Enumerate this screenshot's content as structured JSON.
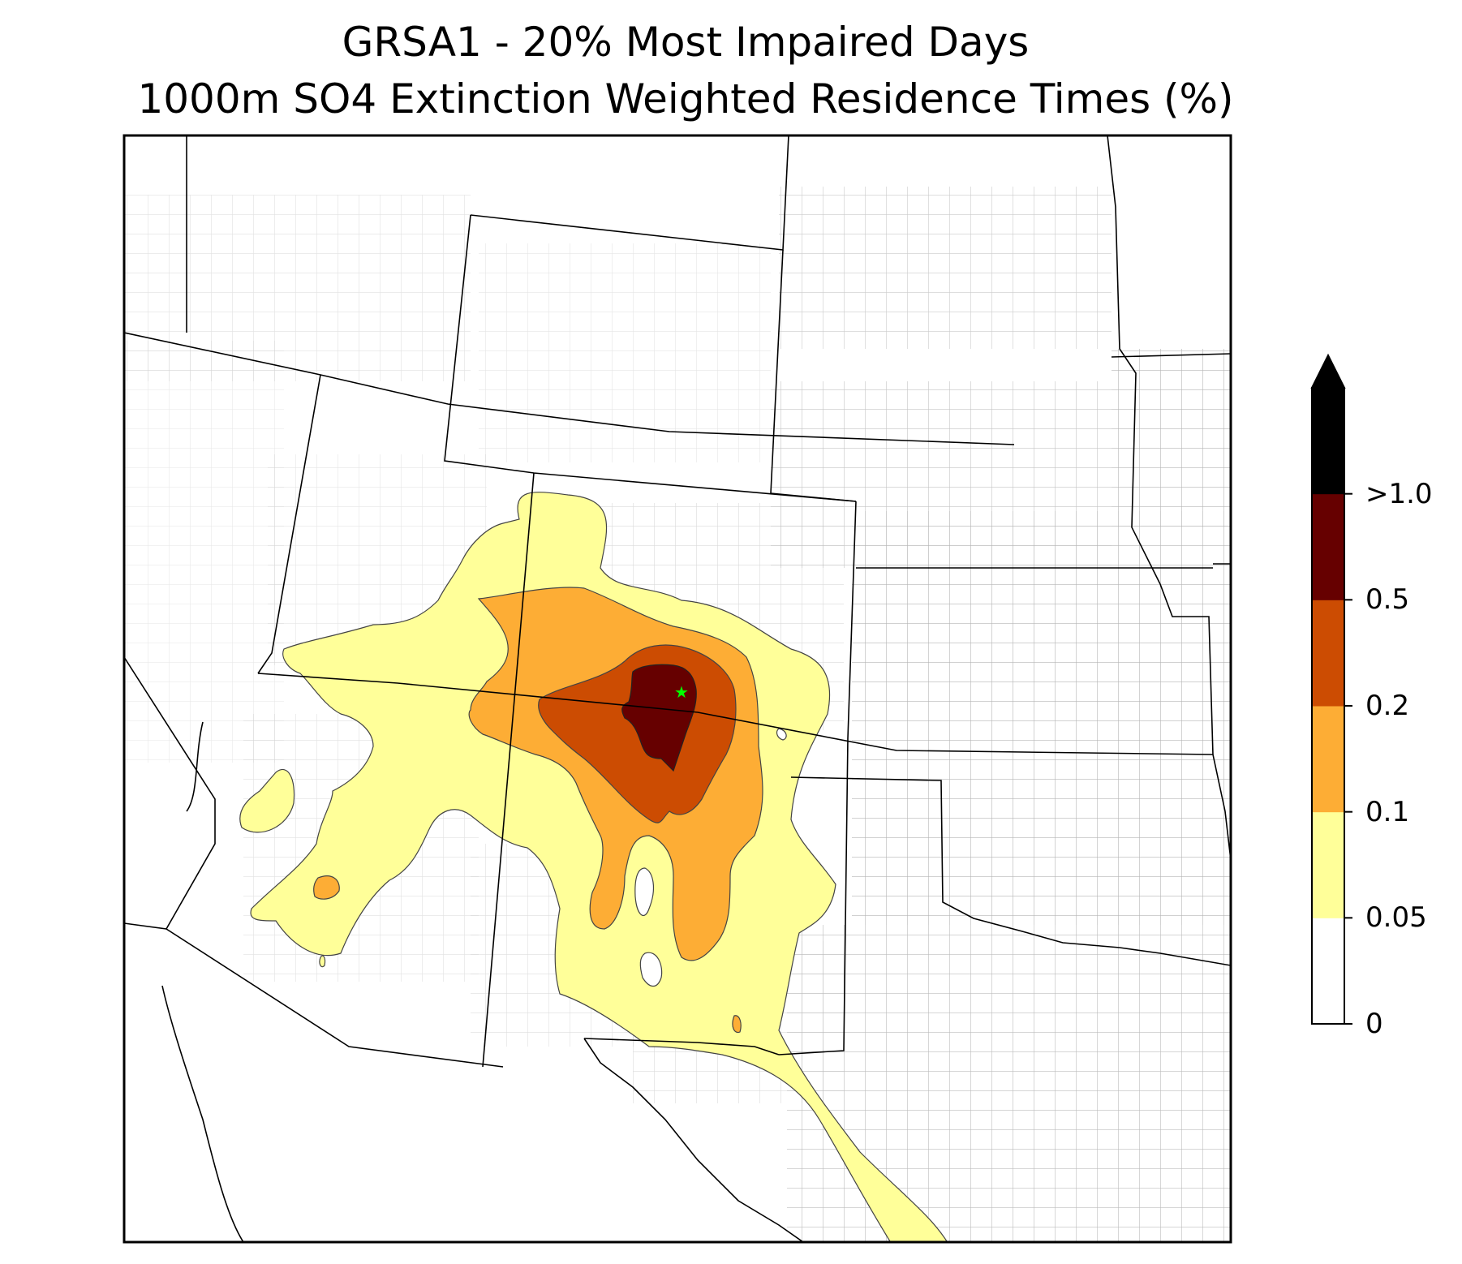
{
  "title": "GRSA1 - 20% Most Impaired Days",
  "subtitle": "1000m SO4 Extinction Weighted Residence Times (%)",
  "colorbar": {
    "ticks": [
      "0",
      "0.05",
      "0.1",
      "0.2",
      "0.5",
      ">1.0"
    ],
    "bins": [
      {
        "range": "0-0.05",
        "color": "#ffffff"
      },
      {
        "range": "0.05-0.1",
        "color": "#ffff99"
      },
      {
        "range": "0.1-0.2",
        "color": "#fdad35"
      },
      {
        "range": "0.2-0.5",
        "color": "#cc4c02"
      },
      {
        "range": "0.5-1.0",
        "color": "#660000"
      },
      {
        "range": ">1.0",
        "color": "#000000"
      }
    ],
    "extend": "max"
  },
  "site_marker": {
    "name": "GRSA1",
    "symbol": "star",
    "color": "#00ff00"
  },
  "colors": {
    "state_border": "#000000",
    "county_border": "#aaaaaa"
  }
}
